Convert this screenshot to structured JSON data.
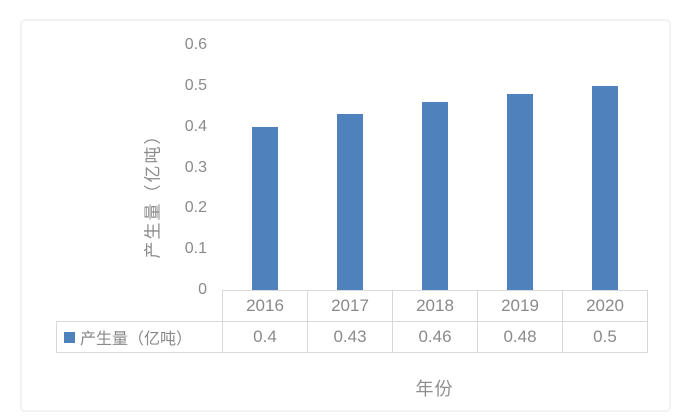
{
  "chart_data": {
    "type": "bar",
    "title": "",
    "categories": [
      "2016",
      "2017",
      "2018",
      "2019",
      "2020"
    ],
    "series": [
      {
        "name": "产生量（亿吨）",
        "values": [
          0.4,
          0.43,
          0.46,
          0.48,
          0.5
        ]
      }
    ],
    "xlabel": "年份",
    "ylabel": "产生量（亿吨）",
    "ylim": [
      0,
      0.6
    ],
    "ytick_step": 0.1,
    "yticks": [
      "0",
      "0.1",
      "0.2",
      "0.3",
      "0.4",
      "0.5",
      "0.6"
    ],
    "grid": false,
    "axis_lines": false,
    "data_table_shown": true,
    "legend_position": "data-table-left",
    "colors": {
      "bar": "#4f81bd",
      "text": "#8a8a8a",
      "table_border": "#d9d9d9",
      "frame_border": "#f2f2f2",
      "background": "#ffffff"
    }
  }
}
